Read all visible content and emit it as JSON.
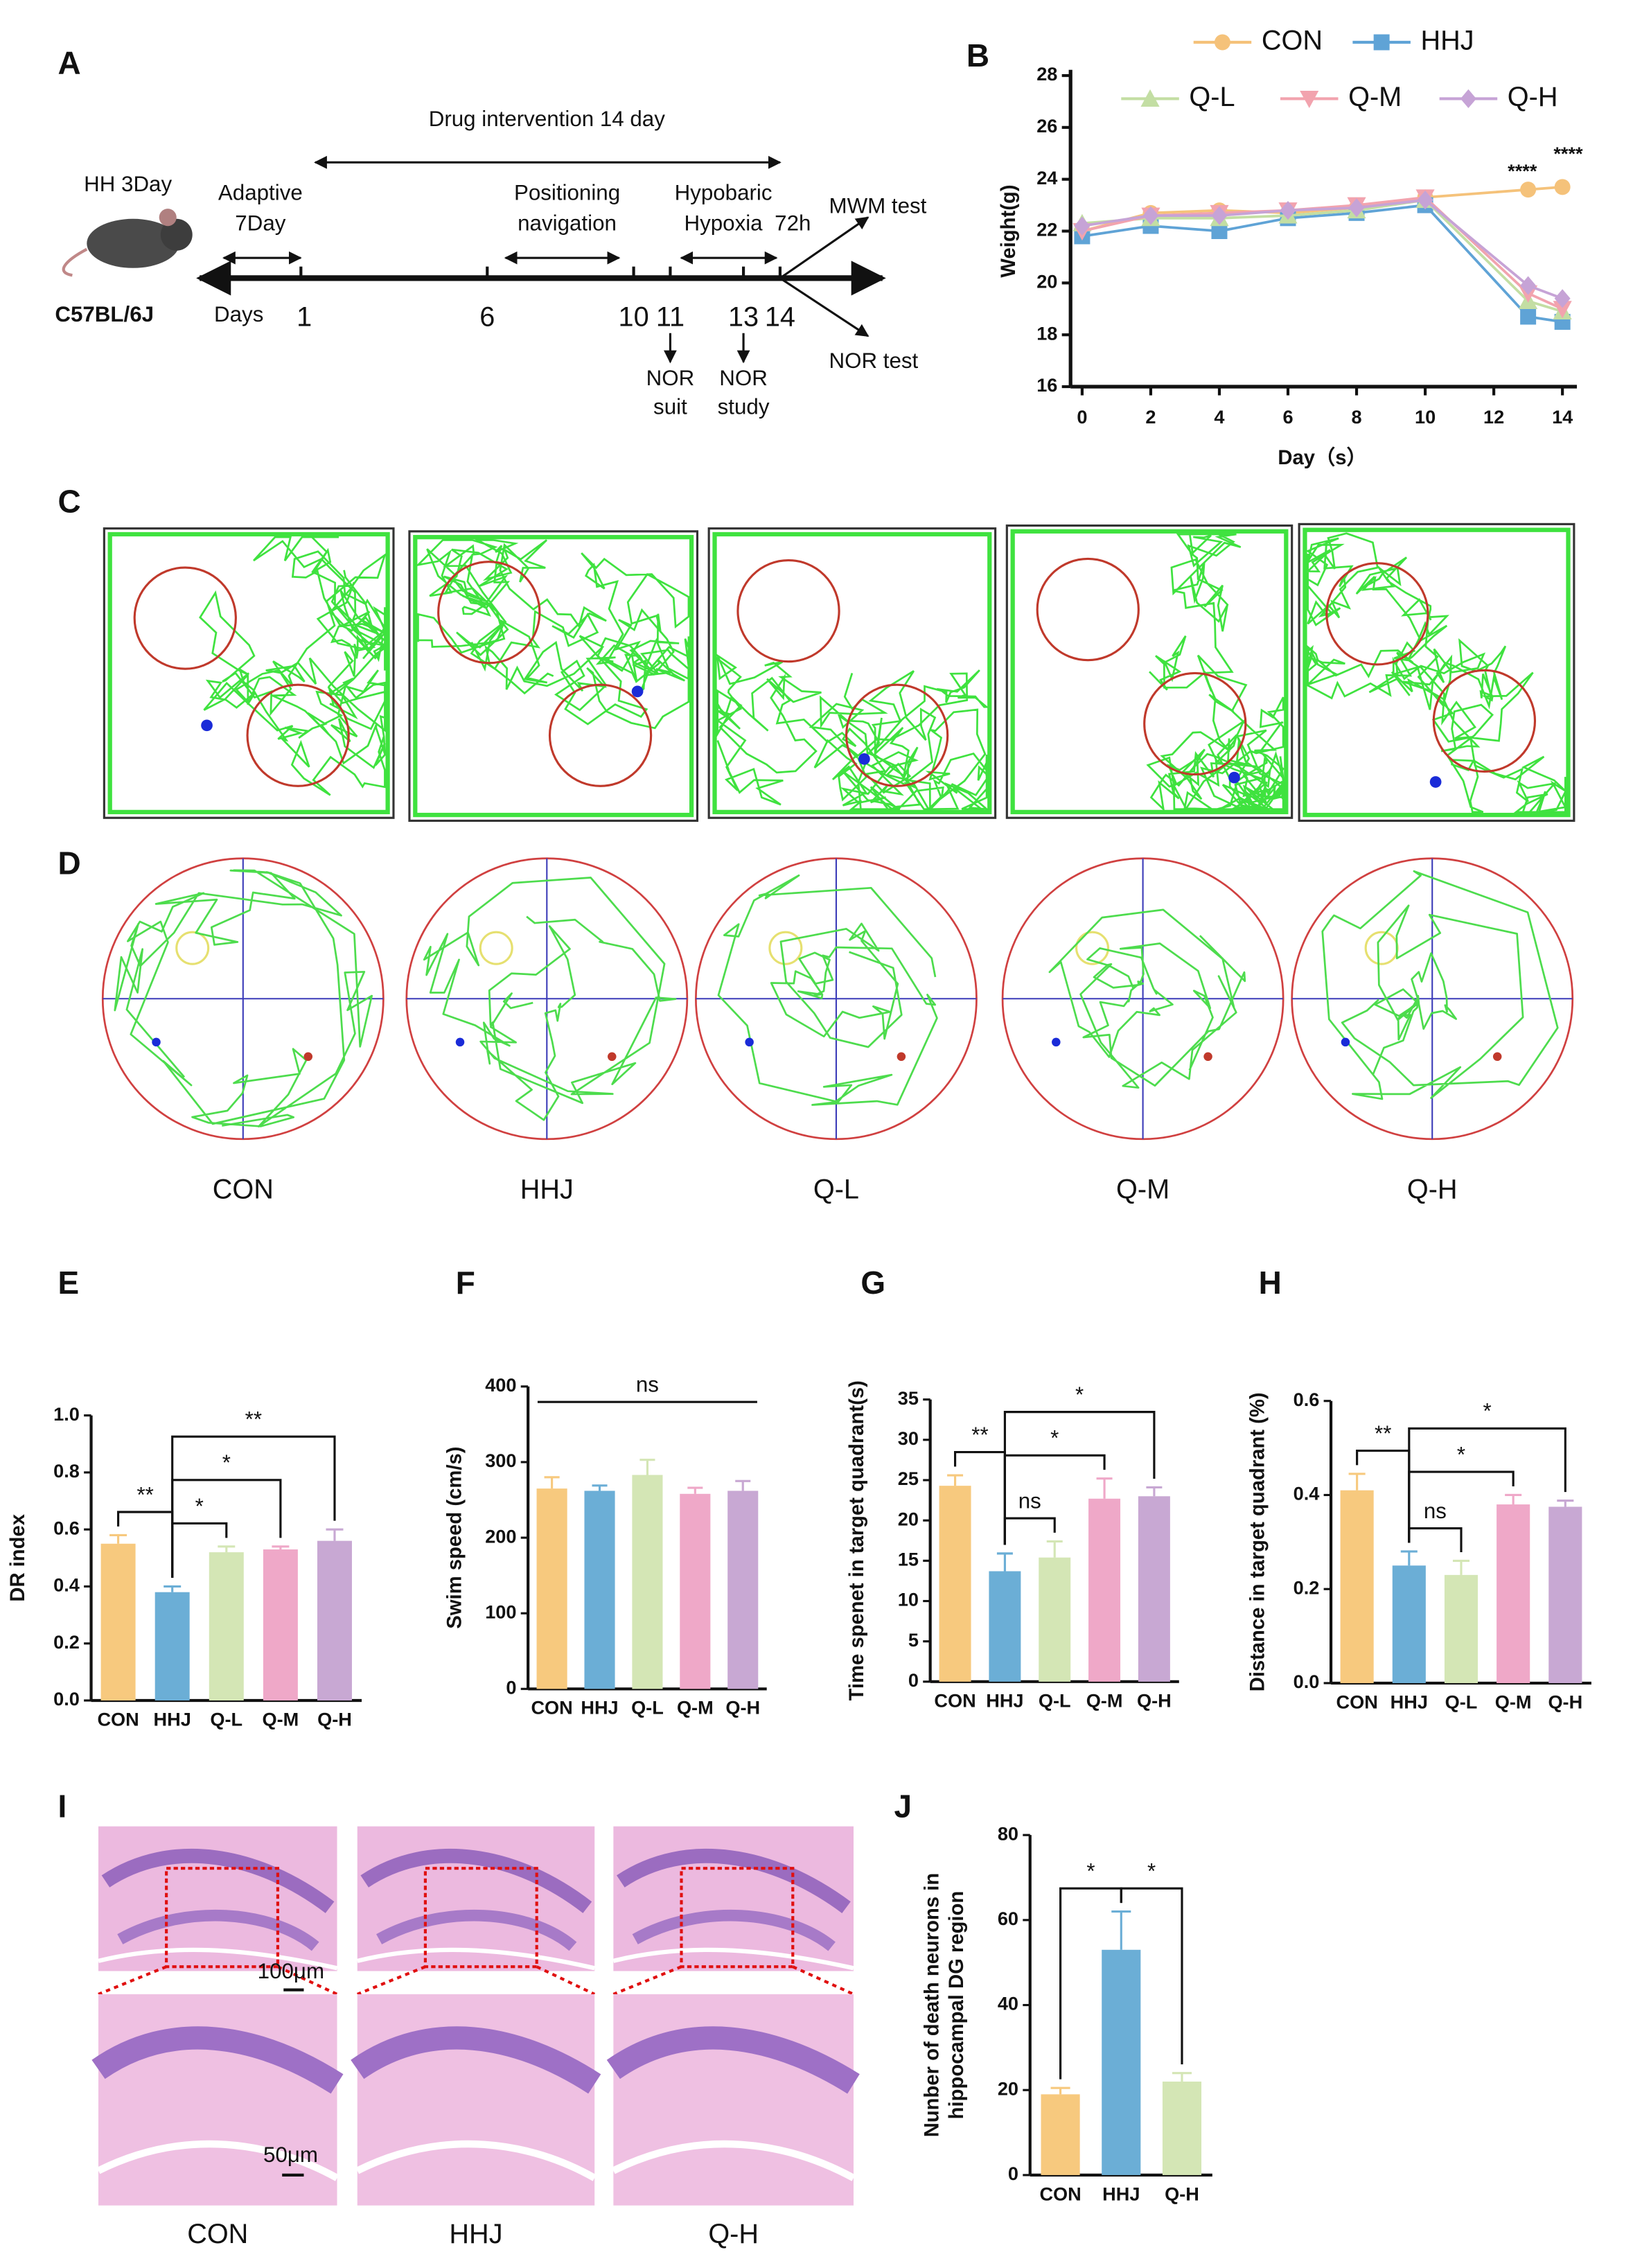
{
  "timeline": {
    "label": "A",
    "model": "HH  3Day",
    "strain": "C57BL/6J",
    "days_label": "Days",
    "days": [
      1,
      6,
      10,
      11,
      13,
      14
    ],
    "intervention": "Drug intervention 14 day",
    "phases": [
      [
        "Adaptive",
        "7Day"
      ],
      [
        "Positioning",
        "navigation"
      ],
      [
        "Hypobaric",
        "Hypoxia"
      ]
    ],
    "duration": "72h",
    "tests": [
      "MWM test",
      "NOR test"
    ],
    "nor_steps": [
      [
        "NOR",
        "suit"
      ],
      [
        "NOR",
        "study"
      ]
    ]
  },
  "tracks": {
    "label": "C"
  },
  "maze": {
    "label": "D",
    "groups": [
      "CON",
      "HHJ",
      "Q-L",
      "Q-M",
      "Q-H"
    ]
  },
  "histology": {
    "label": "I",
    "groups": [
      "CON",
      "HHJ",
      "Q-H"
    ],
    "scale_bars": [
      "100μm",
      "50μm"
    ]
  },
  "chart_data": [
    {
      "type": "line",
      "label": "B",
      "ylabel": "Weight(g)",
      "xlabel": "Day（s）",
      "x": [
        0,
        2,
        4,
        6,
        8,
        10,
        13,
        14
      ],
      "xlim": [
        0,
        14
      ],
      "xticks": [
        0,
        2,
        4,
        6,
        8,
        10,
        12,
        14
      ],
      "ylim": [
        16,
        28
      ],
      "yticks": [
        16,
        18,
        20,
        22,
        24,
        26,
        28
      ],
      "series": [
        {
          "name": "CON",
          "color": "#f5c27a",
          "marker": "circle",
          "values": [
            22.0,
            22.7,
            22.8,
            22.7,
            22.9,
            23.3,
            23.6,
            23.7
          ]
        },
        {
          "name": "HHJ",
          "color": "#5fa3d6",
          "marker": "square",
          "values": [
            21.8,
            22.2,
            22.0,
            22.5,
            22.7,
            23.0,
            18.7,
            18.5
          ]
        },
        {
          "name": "Q-L",
          "color": "#c3dea3",
          "marker": "triangle-up",
          "values": [
            22.3,
            22.5,
            22.5,
            22.6,
            22.8,
            23.2,
            19.3,
            18.9
          ]
        },
        {
          "name": "Q-M",
          "color": "#f2a3ae",
          "marker": "triangle-down",
          "values": [
            22.0,
            22.6,
            22.7,
            22.8,
            23.0,
            23.3,
            19.6,
            19.0
          ]
        },
        {
          "name": "Q-H",
          "color": "#c6a3d6",
          "marker": "diamond",
          "values": [
            22.2,
            22.6,
            22.6,
            22.8,
            22.9,
            23.2,
            19.9,
            19.4
          ]
        }
      ],
      "annotations": [
        "****",
        "****"
      ]
    },
    {
      "type": "bar",
      "label": "E",
      "ylabel": "DR index",
      "categories": [
        "CON",
        "HHJ",
        "Q-L",
        "Q-M",
        "Q-H"
      ],
      "colors": [
        "#f7c97e",
        "#6baed6",
        "#d4e6b5",
        "#efa8c8",
        "#c8a8d3"
      ],
      "values": [
        0.55,
        0.38,
        0.52,
        0.53,
        0.56
      ],
      "errors": [
        0.03,
        0.02,
        0.02,
        0.01,
        0.04
      ],
      "ylim": [
        0,
        1
      ],
      "yticks": [
        {
          "value": 0,
          "label": "0.0"
        },
        0.2,
        0.4,
        0.6,
        0.8,
        {
          "value": 1,
          "label": "1.0"
        }
      ],
      "brackets": [
        {
          "from": 0,
          "to": 1,
          "text": "**"
        },
        {
          "from": 1,
          "to": 2,
          "text": "*"
        },
        {
          "from": 1,
          "to": 3,
          "text": "*"
        },
        {
          "from": 1,
          "to": 4,
          "text": "**"
        }
      ]
    },
    {
      "type": "bar",
      "label": "F",
      "ylabel": "Swim speed (cm/s)",
      "categories": [
        "CON",
        "HHJ",
        "Q-L",
        "Q-M",
        "Q-H"
      ],
      "colors": [
        "#f7c97e",
        "#6baed6",
        "#d4e6b5",
        "#efa8c8",
        "#c8a8d3"
      ],
      "values": [
        265,
        262,
        283,
        258,
        262
      ],
      "errors": [
        15,
        7,
        20,
        8,
        13
      ],
      "ylim": [
        0,
        400
      ],
      "yticks": [
        0,
        100,
        200,
        300,
        400
      ],
      "bracket_style": "line",
      "brackets": [
        {
          "from": 0,
          "to": 4,
          "text": "ns"
        }
      ]
    },
    {
      "type": "bar",
      "label": "G",
      "ylabel": "Time spenet in target quadrant(s)",
      "categories": [
        "CON",
        "HHJ",
        "Q-L",
        "Q-M",
        "Q-H"
      ],
      "colors": [
        "#f7c97e",
        "#6baed6",
        "#d4e6b5",
        "#efa8c8",
        "#c8a8d3"
      ],
      "values": [
        24.3,
        13.7,
        15.4,
        22.7,
        23.0
      ],
      "errors": [
        1.3,
        2.2,
        2.0,
        2.5,
        1.1
      ],
      "ylim": [
        0,
        35
      ],
      "yticks": [
        0,
        5,
        10,
        15,
        20,
        25,
        30,
        35
      ],
      "brackets": [
        {
          "from": 0,
          "to": 1,
          "text": "**"
        },
        {
          "from": 1,
          "to": 2,
          "text": "ns"
        },
        {
          "from": 1,
          "to": 3,
          "text": "*"
        },
        {
          "from": 1,
          "to": 4,
          "text": "*"
        }
      ]
    },
    {
      "type": "bar",
      "label": "H",
      "ylabel": "Distance in target quadrant (%)",
      "categories": [
        "CON",
        "HHJ",
        "Q-L",
        "Q-M",
        "Q-H"
      ],
      "colors": [
        "#f7c97e",
        "#6baed6",
        "#d4e6b5",
        "#efa8c8",
        "#c8a8d3"
      ],
      "values": [
        0.41,
        0.25,
        0.23,
        0.38,
        0.375
      ],
      "errors": [
        0.035,
        0.03,
        0.03,
        0.02,
        0.013
      ],
      "ylim": [
        0,
        0.6
      ],
      "yticks": [
        {
          "value": 0,
          "label": "0.0"
        },
        0.2,
        0.4,
        0.6
      ],
      "brackets": [
        {
          "from": 0,
          "to": 1,
          "text": "**"
        },
        {
          "from": 1,
          "to": 2,
          "text": "ns"
        },
        {
          "from": 1,
          "to": 3,
          "text": "*"
        },
        {
          "from": 1,
          "to": 4,
          "text": "*"
        }
      ]
    },
    {
      "type": "bar",
      "label": "J",
      "ylabel": [
        "Nunber of death neurons in",
        "hippocampal DG region"
      ],
      "categories": [
        "CON",
        "HHJ",
        "Q-H"
      ],
      "colors": [
        "#f7c97e",
        "#6baed6",
        "#d4e6b5"
      ],
      "values": [
        19,
        53,
        22
      ],
      "errors": [
        1.5,
        9,
        2
      ],
      "ylim": [
        0,
        80
      ],
      "yticks": [
        0,
        20,
        40,
        60,
        80
      ],
      "brackets": [
        {
          "from": 0,
          "to": 1,
          "text": "*"
        },
        {
          "from": 1,
          "to": 2,
          "text": "*"
        }
      ]
    }
  ]
}
